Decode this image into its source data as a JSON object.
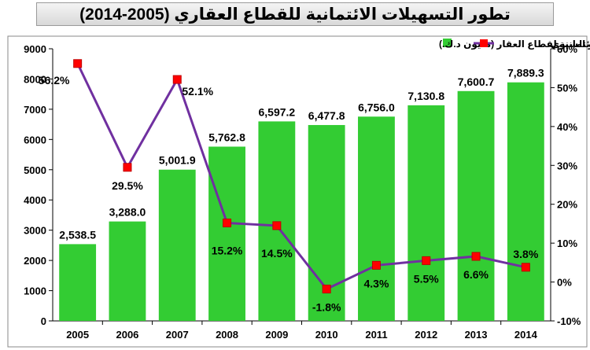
{
  "chart_data": {
    "type": "bar",
    "title": "تطور التسهيلات الائتمانية للقطاع العقاري (2005-2014)",
    "categories": [
      "2005",
      "2006",
      "2007",
      "2008",
      "2009",
      "2010",
      "2011",
      "2012",
      "2013",
      "2014"
    ],
    "series": [
      {
        "name": "محفظة التسهيلات الائتمانية لقطاع العقار (مليون د.ك.)",
        "type": "bar",
        "axis": "left",
        "color": "#33cc33",
        "values": [
          2538.5,
          3288.0,
          5001.9,
          5762.8,
          6597.2,
          6477.8,
          6756.0,
          7130.8,
          7600.7,
          7889.3
        ],
        "labels": [
          "2,538.5",
          "3,288.0",
          "5,001.9",
          "5,762.8",
          "6,597.2",
          "6,477.8",
          "6,756.0",
          "7,130.8",
          "7,600.7",
          "7,889.3"
        ]
      },
      {
        "name": "نسبة النمو السنوي",
        "type": "line",
        "axis": "right",
        "color": "#7030a0",
        "marker_color": "#ff0000",
        "values": [
          56.2,
          29.5,
          52.1,
          15.2,
          14.5,
          -1.8,
          4.3,
          5.5,
          6.6,
          3.8
        ],
        "labels": [
          "56.2%",
          "29.5%",
          "52.1%",
          "15.2%",
          "14.5%",
          "-1.8%",
          "4.3%",
          "5.5%",
          "6.6%",
          "3.8%"
        ]
      }
    ],
    "y_left": {
      "range": [
        0,
        9000
      ],
      "ticks": [
        "0",
        "1000",
        "2000",
        "3000",
        "4000",
        "5000",
        "6000",
        "7000",
        "8000",
        "9000"
      ]
    },
    "y_right": {
      "range": [
        -10,
        60
      ],
      "ticks": [
        "-10%",
        "0%",
        "10%",
        "20%",
        "30%",
        "40%",
        "50%",
        "60%"
      ]
    },
    "grid": false,
    "legend": "top",
    "plot_background": "#ffffff",
    "chart_background": "#ffffff"
  }
}
